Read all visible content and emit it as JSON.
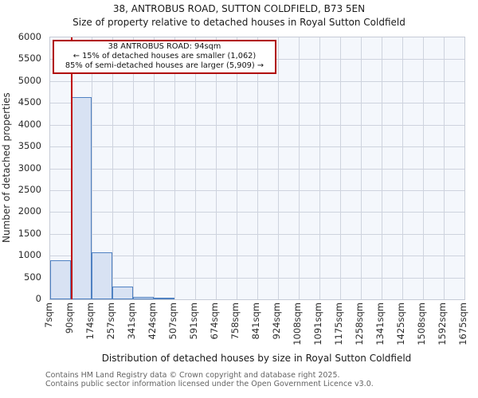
{
  "chart_data": {
    "type": "bar",
    "title": "38, ANTROBUS ROAD, SUTTON COLDFIELD, B73 5EN",
    "subtitle": "Size of property relative to detached houses in Royal Sutton Coldfield",
    "xlabel": "Distribution of detached houses by size in Royal Sutton Coldfield",
    "ylabel": "Number of detached properties",
    "categories": [
      "7sqm",
      "90sqm",
      "174sqm",
      "257sqm",
      "341sqm",
      "424sqm",
      "507sqm",
      "591sqm",
      "674sqm",
      "758sqm",
      "841sqm",
      "924sqm",
      "1008sqm",
      "1091sqm",
      "1175sqm",
      "1258sqm",
      "1341sqm",
      "1425sqm",
      "1508sqm",
      "1592sqm",
      "1675sqm"
    ],
    "bin_edges": [
      7,
      90,
      174,
      257,
      341,
      424,
      507,
      591,
      674,
      758,
      841,
      924,
      1008,
      1091,
      1175,
      1258,
      1341,
      1425,
      1508,
      1592,
      1675
    ],
    "values": [
      900,
      4630,
      1080,
      290,
      60,
      30,
      0,
      0,
      0,
      0,
      0,
      0,
      0,
      0,
      0,
      0,
      0,
      0,
      0,
      0
    ],
    "ylim": [
      0,
      6000
    ],
    "yticks": [
      0,
      500,
      1000,
      1500,
      2000,
      2500,
      3000,
      3500,
      4000,
      4500,
      5000,
      5500,
      6000
    ],
    "xlim": [
      7,
      1675
    ],
    "grid": true,
    "legend": false,
    "marker_value_sqm": 94,
    "annotation": {
      "line1": "38 ANTROBUS ROAD: 94sqm",
      "line2": "← 15% of detached houses are smaller (1,062)",
      "line3": "85% of semi-detached houses are larger (5,909) →"
    },
    "colors": {
      "bar_fill": "#d8e2f3",
      "bar_edge": "#4f81c2",
      "marker_line": "#c00000",
      "annotation_border": "#b00000",
      "grid": "#ced3de",
      "plot_bg": "#f4f7fc"
    }
  },
  "footer": {
    "line1": "Contains HM Land Registry data © Crown copyright and database right 2025.",
    "line2": "Contains public sector information licensed under the Open Government Licence v3.0."
  }
}
